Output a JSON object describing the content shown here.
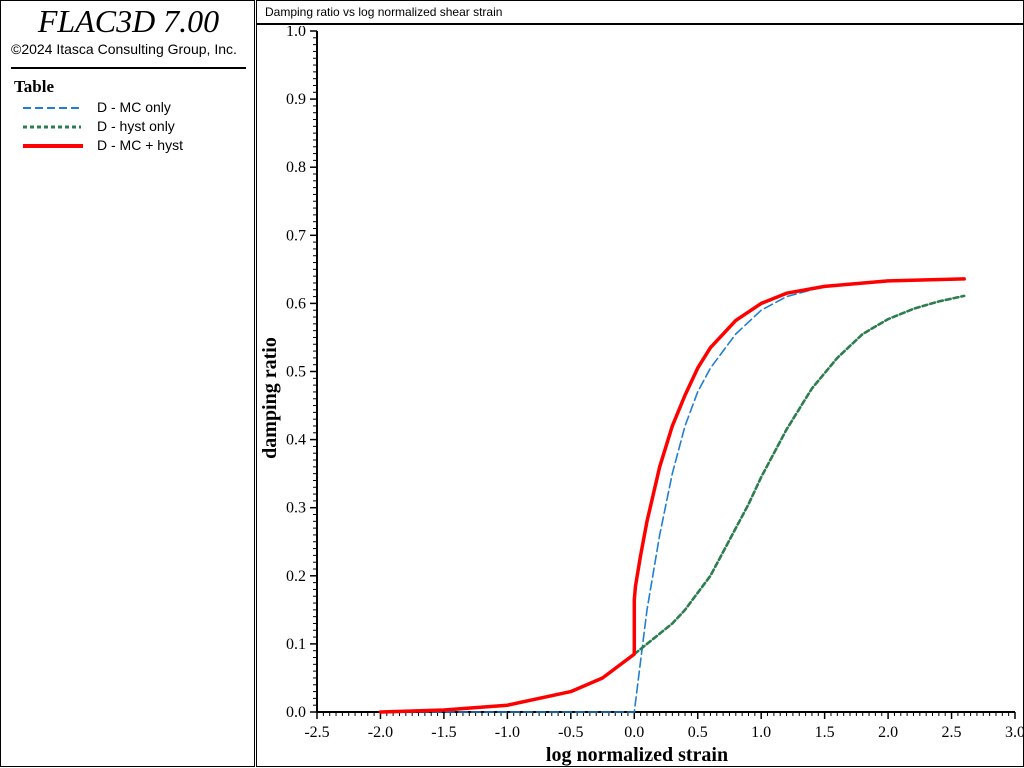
{
  "app": {
    "title": "FLAC3D 7.00",
    "copyright": "©2024 Itasca Consulting Group, Inc."
  },
  "legend": {
    "title": "Table",
    "items": [
      {
        "label": "D - MC only",
        "color": "#1f7fd4",
        "style": "dashed"
      },
      {
        "label": "D - hyst only",
        "color": "#2e7d4f",
        "style": "dotted"
      },
      {
        "label": "D - MC + hyst",
        "color": "#ff0000",
        "style": "solid"
      }
    ]
  },
  "chart_data": {
    "type": "line",
    "title": "Damping ratio vs log normalized shear strain",
    "xlabel": "log normalized strain",
    "ylabel": "damping ratio",
    "xlim": [
      -2.5,
      3.0
    ],
    "ylim": [
      0.0,
      1.0
    ],
    "xticks": [
      "-2.5",
      "-2.0",
      "-1.5",
      "-1.0",
      "-0.5",
      "0.0",
      "0.5",
      "1.0",
      "1.5",
      "2.0",
      "2.5",
      "3.0"
    ],
    "yticks": [
      "0.0",
      "0.1",
      "0.2",
      "0.3",
      "0.4",
      "0.5",
      "0.6",
      "0.7",
      "0.8",
      "0.9",
      "1.0"
    ],
    "grid": false,
    "series": [
      {
        "name": "D - MC only",
        "color": "#1f7fd4",
        "style": "dashed",
        "x": [
          -2.0,
          -1.0,
          0.0,
          0.05,
          0.1,
          0.2,
          0.3,
          0.4,
          0.5,
          0.6,
          0.8,
          1.0,
          1.2,
          1.5,
          2.0,
          2.6
        ],
        "y": [
          0.0,
          0.0,
          0.0,
          0.075,
          0.15,
          0.26,
          0.35,
          0.42,
          0.47,
          0.505,
          0.555,
          0.59,
          0.61,
          0.625,
          0.633,
          0.635
        ]
      },
      {
        "name": "D - hyst only",
        "color": "#2e7d4f",
        "style": "dotted",
        "x": [
          0.0,
          0.1,
          0.2,
          0.3,
          0.4,
          0.5,
          0.6,
          0.7,
          0.8,
          0.9,
          1.0,
          1.2,
          1.4,
          1.6,
          1.8,
          2.0,
          2.2,
          2.4,
          2.6
        ],
        "y": [
          0.085,
          0.1,
          0.115,
          0.13,
          0.15,
          0.175,
          0.2,
          0.235,
          0.27,
          0.305,
          0.345,
          0.415,
          0.475,
          0.52,
          0.555,
          0.577,
          0.592,
          0.603,
          0.611
        ]
      },
      {
        "name": "D - MC + hyst",
        "color": "#ff0000",
        "style": "solid",
        "x": [
          -2.0,
          -1.5,
          -1.0,
          -0.5,
          -0.25,
          0.0,
          0.0,
          0.01,
          0.05,
          0.1,
          0.2,
          0.3,
          0.4,
          0.5,
          0.6,
          0.8,
          1.0,
          1.2,
          1.5,
          2.0,
          2.6
        ],
        "y": [
          0.0,
          0.003,
          0.01,
          0.03,
          0.05,
          0.085,
          0.165,
          0.185,
          0.23,
          0.28,
          0.36,
          0.42,
          0.465,
          0.505,
          0.535,
          0.575,
          0.6,
          0.615,
          0.625,
          0.633,
          0.636
        ]
      }
    ]
  }
}
